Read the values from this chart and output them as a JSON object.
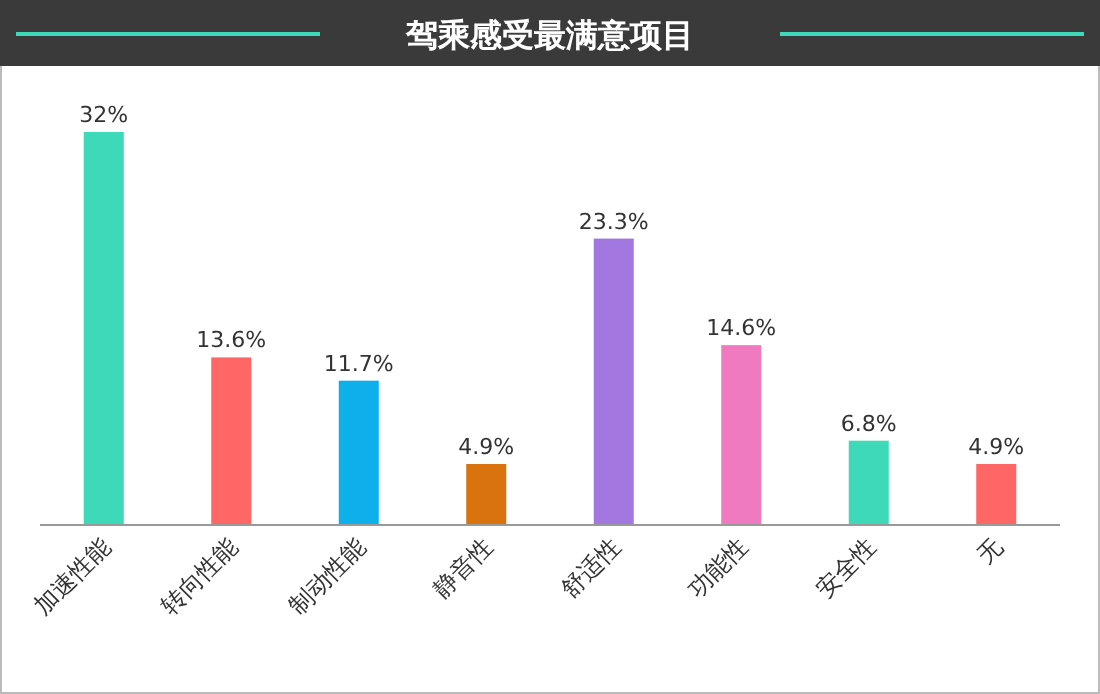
{
  "chart_data": {
    "type": "bar",
    "title": "驾乘感受最满意项目",
    "categories": [
      "加速性能",
      "转向性能",
      "制动性能",
      "静音性",
      "舒适性",
      "功能性",
      "安全性",
      "无"
    ],
    "values": [
      32,
      13.6,
      11.7,
      4.9,
      23.3,
      14.6,
      6.8,
      4.9
    ],
    "colors": [
      "#3dd9b9",
      "#ff6666",
      "#0db0ea",
      "#d9730d",
      "#a277e0",
      "#ef7abf",
      "#3dd9b9",
      "#ff6666"
    ],
    "value_labels": [
      "32%",
      "13.6%",
      "11.7%",
      "4.9%",
      "23.3%",
      "14.6%",
      "6.8%",
      "4.9%"
    ]
  }
}
